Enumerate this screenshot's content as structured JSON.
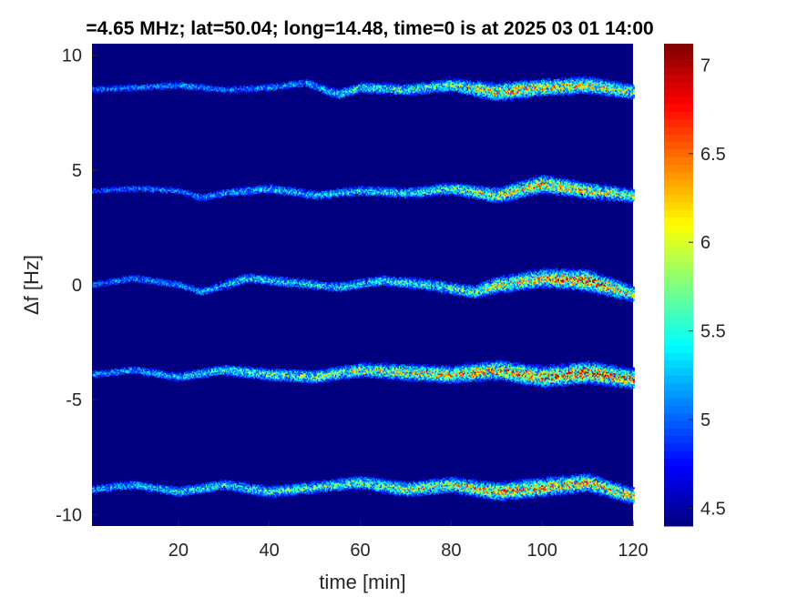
{
  "chart_data": {
    "type": "heatmap",
    "title": "=4.65 MHz;  lat=50.04; long=14.48, time=0 is at 2025 03 01 14:00",
    "xlabel": "time [min]",
    "ylabel": "Δf [Hz]",
    "xlim": [
      1,
      120
    ],
    "ylim": [
      -10.5,
      10.5
    ],
    "x_ticks": [
      20,
      40,
      60,
      80,
      100,
      120
    ],
    "y_ticks": [
      10,
      5,
      0,
      -5,
      -10
    ],
    "colorbar": {
      "colormap": "jet",
      "range": [
        4.4,
        7.12
      ],
      "ticks": [
        4.5,
        5,
        5.5,
        6,
        6.5,
        7
      ]
    },
    "background_value": 4.4,
    "grid": false,
    "series": [
      {
        "x": [
          1,
          10,
          20,
          30,
          40,
          48,
          55,
          60,
          70,
          80,
          90,
          100,
          110,
          120
        ],
        "y": [
          8.5,
          8.6,
          8.7,
          8.5,
          8.6,
          8.8,
          8.3,
          8.6,
          8.5,
          8.7,
          8.4,
          8.6,
          8.7,
          8.4
        ],
        "peak": [
          5.2,
          5.2,
          5.3,
          5.2,
          5.3,
          5.4,
          5.6,
          5.7,
          5.8,
          6.0,
          6.6,
          6.5,
          6.4,
          6.2
        ]
      },
      {
        "x": [
          1,
          10,
          20,
          25,
          30,
          40,
          50,
          60,
          70,
          80,
          90,
          100,
          110,
          120
        ],
        "y": [
          4.1,
          4.2,
          4.1,
          3.8,
          4.0,
          4.2,
          3.9,
          4.1,
          4.0,
          4.2,
          3.9,
          4.4,
          4.1,
          3.9
        ],
        "peak": [
          5.1,
          5.2,
          5.2,
          5.3,
          5.4,
          5.5,
          5.5,
          5.6,
          5.7,
          5.9,
          6.3,
          6.6,
          6.4,
          6.1
        ]
      },
      {
        "x": [
          1,
          10,
          20,
          25,
          35,
          45,
          55,
          65,
          75,
          85,
          90,
          100,
          110,
          120
        ],
        "y": [
          0.0,
          0.3,
          0.0,
          -0.3,
          0.3,
          0.1,
          -0.1,
          0.2,
          0.0,
          -0.3,
          0.0,
          0.3,
          0.2,
          -0.4
        ],
        "peak": [
          5.2,
          5.3,
          5.3,
          5.4,
          5.6,
          5.6,
          5.6,
          5.7,
          5.8,
          6.0,
          6.4,
          6.6,
          7.0,
          6.3
        ]
      },
      {
        "x": [
          1,
          10,
          20,
          30,
          40,
          50,
          60,
          70,
          80,
          90,
          100,
          110,
          120
        ],
        "y": [
          -3.9,
          -3.7,
          -4.0,
          -3.7,
          -3.9,
          -4.0,
          -3.7,
          -3.8,
          -3.9,
          -3.7,
          -4.0,
          -3.8,
          -4.1
        ],
        "peak": [
          5.3,
          5.4,
          5.5,
          5.7,
          5.9,
          6.0,
          6.2,
          6.4,
          6.5,
          6.7,
          6.9,
          7.0,
          6.8
        ]
      },
      {
        "x": [
          1,
          10,
          20,
          30,
          40,
          50,
          60,
          70,
          80,
          90,
          100,
          110,
          120
        ],
        "y": [
          -8.9,
          -8.7,
          -9.0,
          -8.7,
          -9.0,
          -8.8,
          -8.6,
          -8.9,
          -8.7,
          -9.0,
          -8.8,
          -8.6,
          -9.2
        ],
        "peak": [
          5.4,
          5.5,
          5.6,
          5.7,
          5.8,
          5.9,
          6.0,
          6.2,
          6.3,
          6.6,
          6.7,
          6.6,
          6.4
        ]
      }
    ]
  }
}
